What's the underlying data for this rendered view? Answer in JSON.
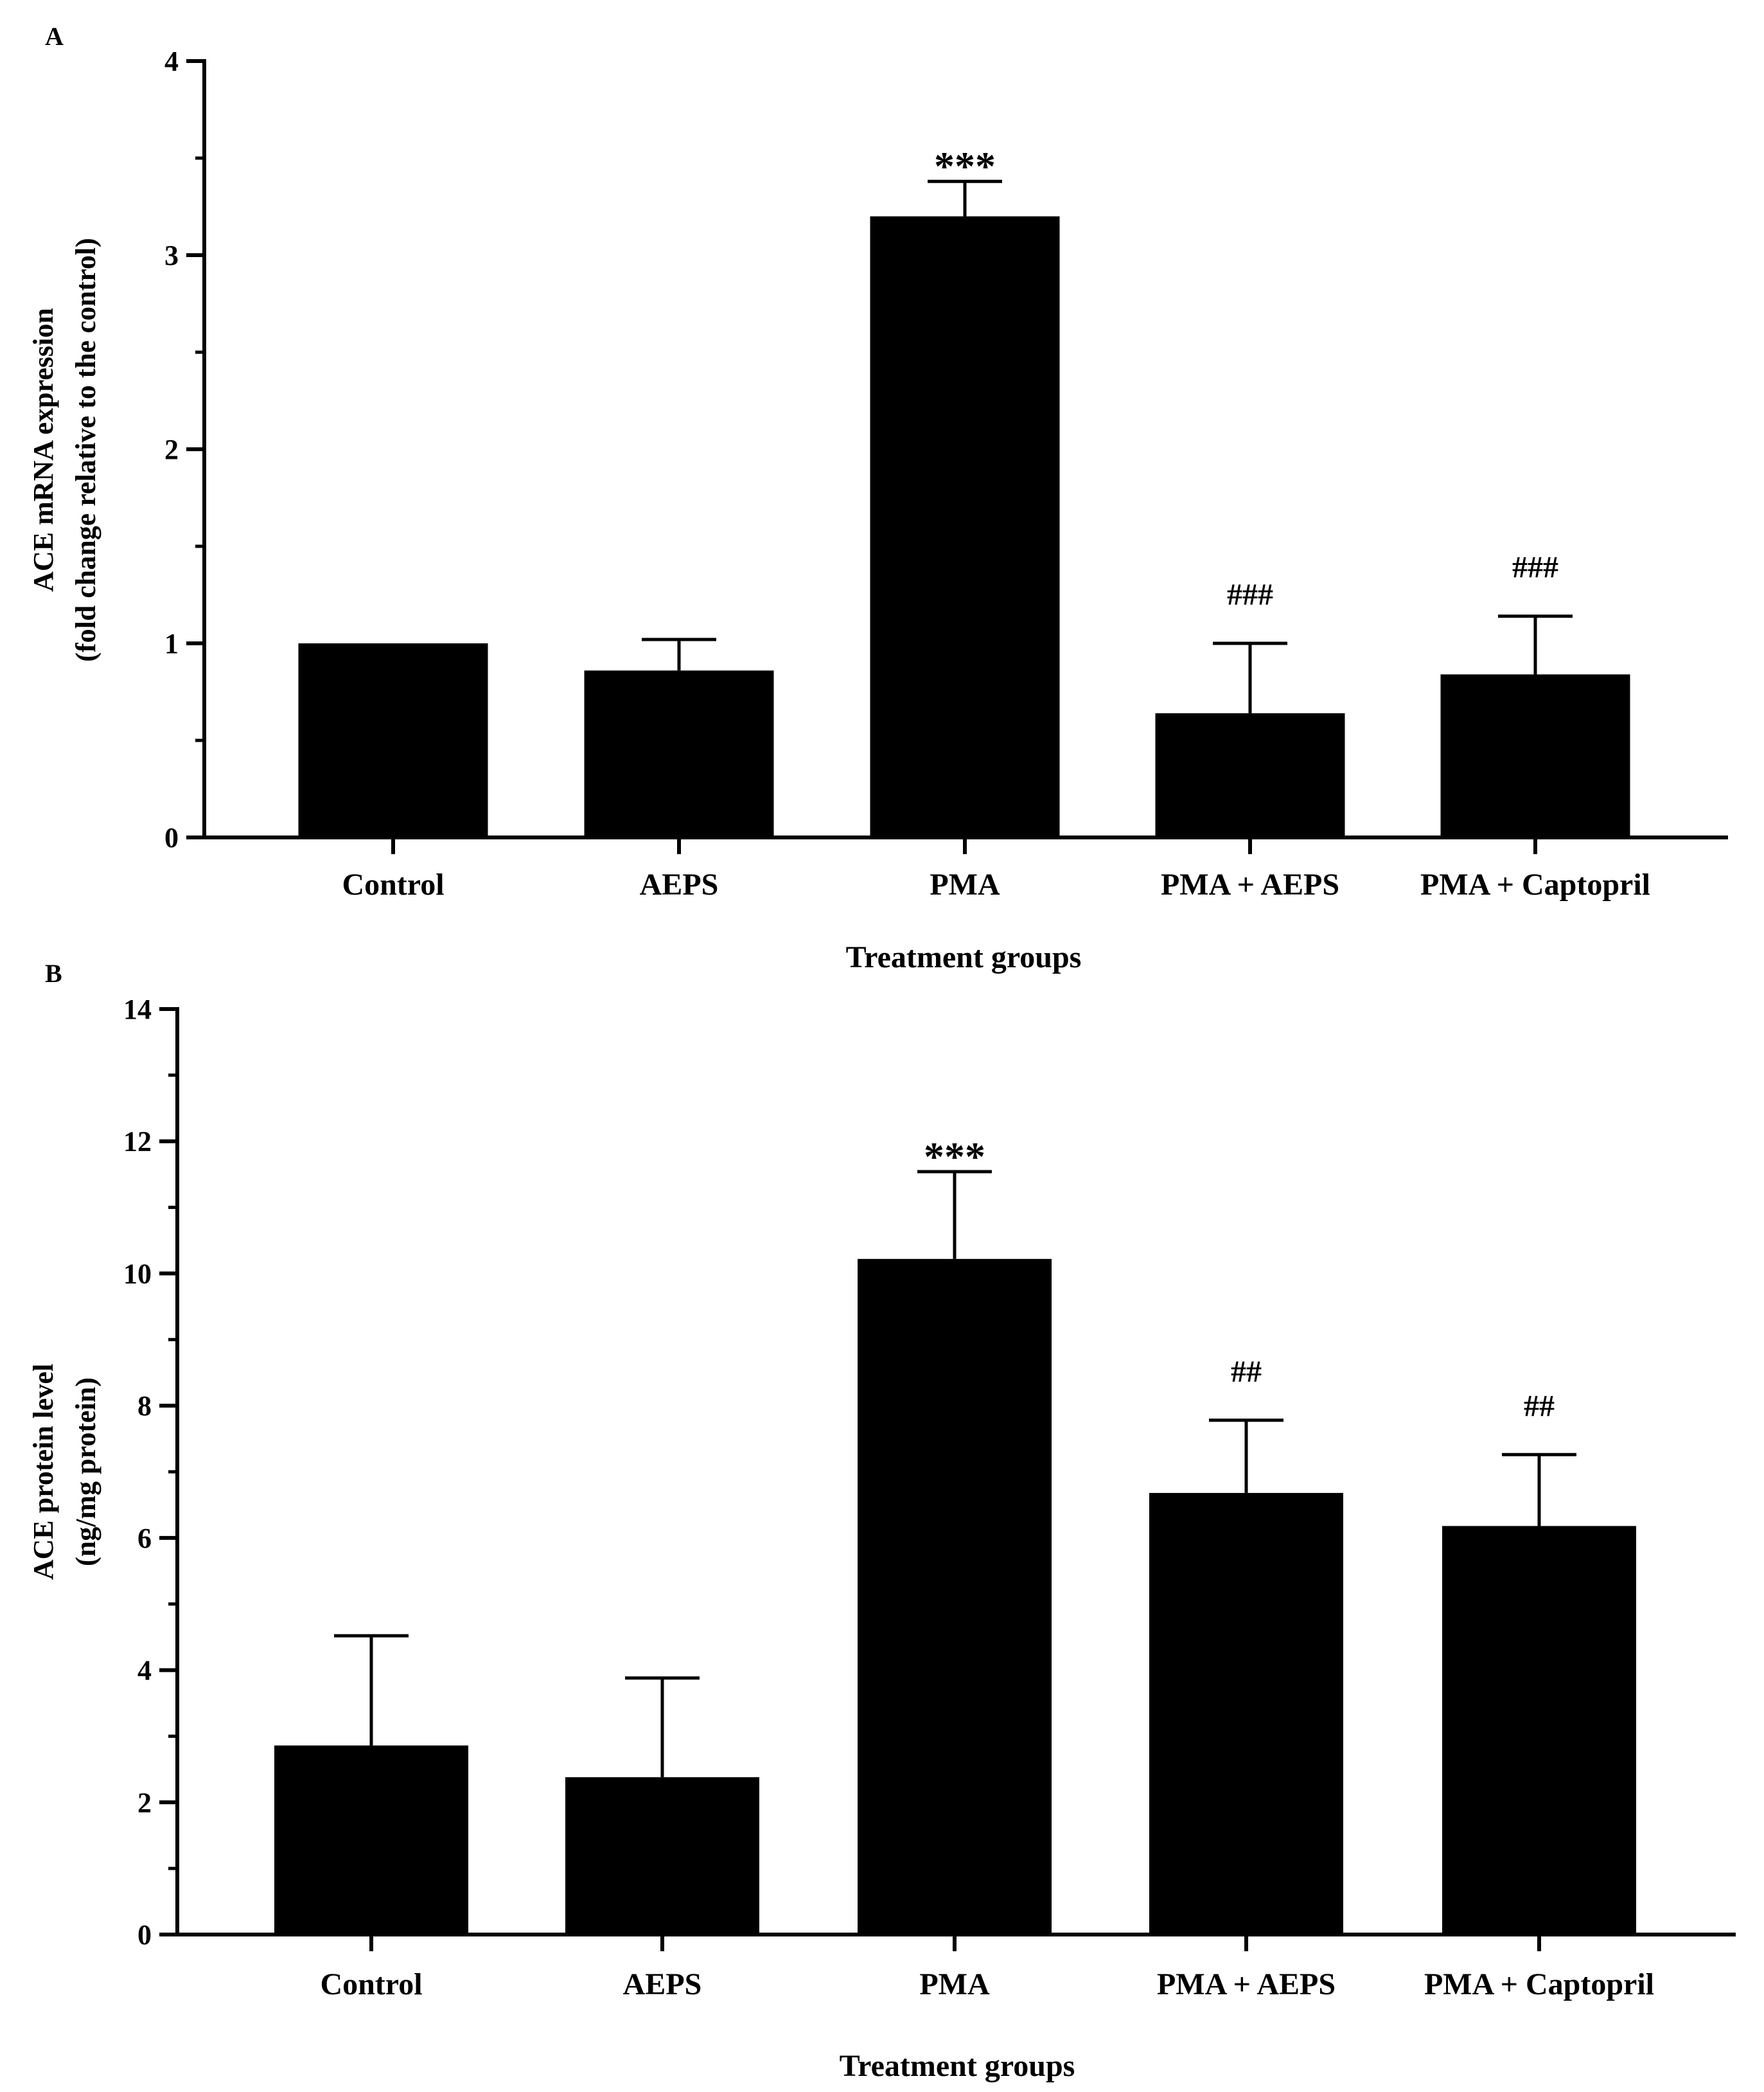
{
  "chart_data": [
    {
      "panel_label": "A",
      "type": "bar",
      "categories": [
        "Control",
        "AEPS",
        "PMA",
        "PMA + AEPS",
        "PMA + Captopril"
      ],
      "values": [
        1.0,
        0.86,
        3.2,
        0.64,
        0.84
      ],
      "errors": [
        0.0,
        0.16,
        0.18,
        0.36,
        0.3
      ],
      "annotations": [
        "",
        "",
        "***",
        "###",
        "###"
      ],
      "ylabel_line1": "ACE mRNA expression",
      "ylabel_line2": "(fold change relative to the control)",
      "xlabel": "Treatment groups",
      "ylim": [
        0,
        4
      ],
      "yticks": [
        0,
        1,
        2,
        3,
        4
      ],
      "minor_step": 0.5,
      "bar_color": "#000000"
    },
    {
      "panel_label": "B",
      "type": "bar",
      "categories": [
        "Control",
        "AEPS",
        "PMA",
        "PMA + AEPS",
        "PMA + Captopril"
      ],
      "values": [
        2.86,
        2.38,
        10.22,
        6.68,
        6.18
      ],
      "errors": [
        1.66,
        1.5,
        1.32,
        1.1,
        1.08
      ],
      "annotations": [
        "",
        "",
        "***",
        "##",
        "##"
      ],
      "ylabel_line1": "ACE protein level",
      "ylabel_line2": "(ng/mg protein)",
      "xlabel": "Treatment groups",
      "ylim": [
        0,
        14
      ],
      "yticks": [
        0,
        2,
        4,
        6,
        8,
        10,
        12,
        14
      ],
      "minor_step": 1,
      "bar_color": "#000000"
    }
  ]
}
